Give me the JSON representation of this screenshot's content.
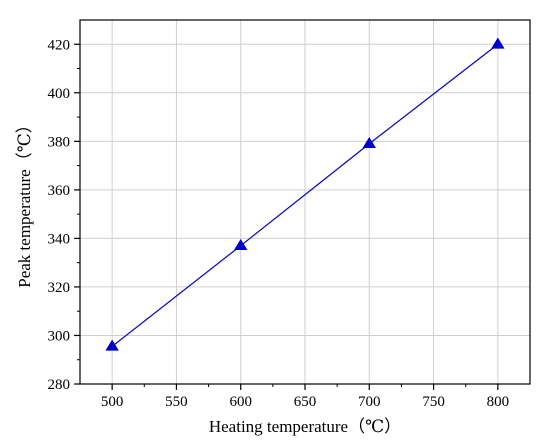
{
  "chart_data": {
    "type": "line",
    "title": "",
    "xlabel": "Heating temperature（℃）",
    "ylabel": "Peak temperature（℃）",
    "xlim": [
      475,
      825
    ],
    "ylim": [
      280,
      430
    ],
    "xticks": [
      500,
      550,
      600,
      650,
      700,
      750,
      800
    ],
    "yticks": [
      280,
      300,
      320,
      340,
      360,
      380,
      400,
      420
    ],
    "grid": true,
    "series": [
      {
        "x": [
          500,
          600,
          700,
          800
        ],
        "y": [
          295.5,
          337,
          379,
          420
        ],
        "color": "#0000cc",
        "marker": "triangle"
      }
    ]
  }
}
